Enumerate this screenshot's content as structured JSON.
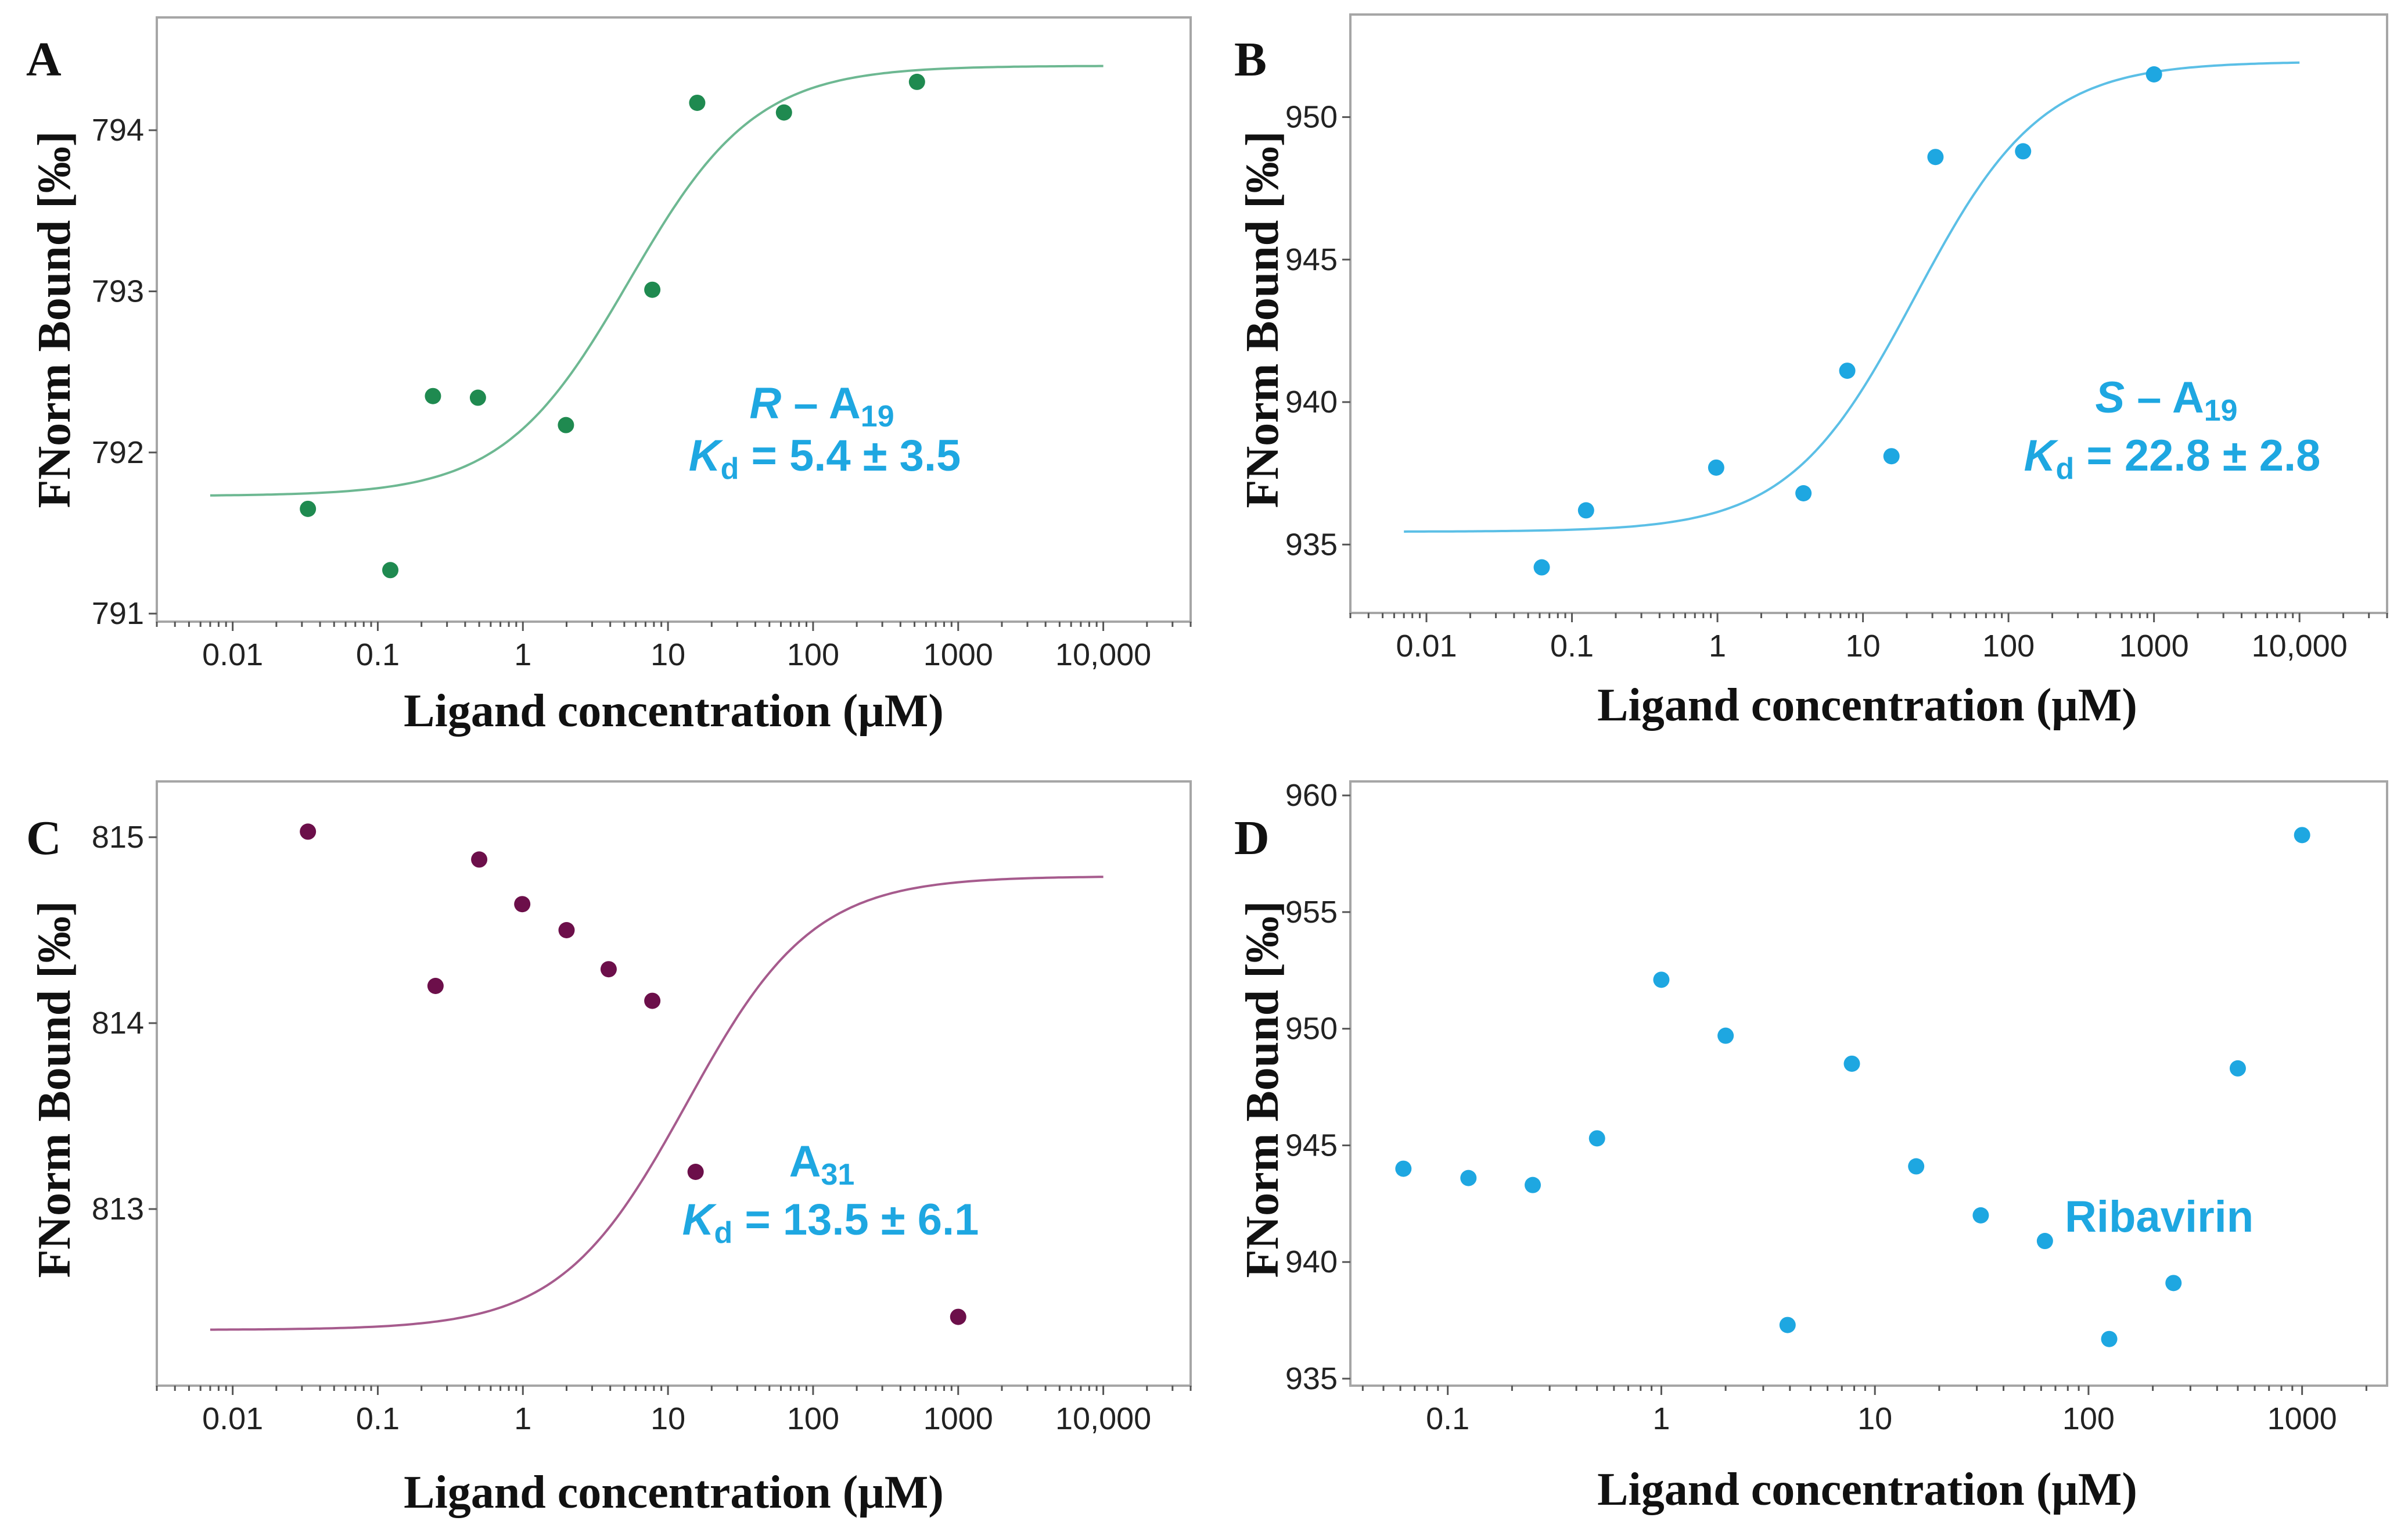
{
  "chart_data": [
    {
      "panel": "A",
      "type": "scatter",
      "xlabel": "Ligand concentration (μM)",
      "ylabel": "FNorm Bound [‰]",
      "x_scale": "log",
      "xlim": [
        0.003,
        40000
      ],
      "ylim": [
        790.95,
        794.7
      ],
      "x_ticks": [
        0.01,
        0.1,
        1,
        10,
        100,
        1000,
        10000
      ],
      "x_tick_labels": [
        "0.01",
        "0.1",
        "1",
        "10",
        "100",
        "1000",
        "10,000"
      ],
      "y_ticks": [
        791,
        792,
        793,
        794
      ],
      "y_tick_labels": [
        "791",
        "792",
        "793",
        "794"
      ],
      "grid": false,
      "point_color": "#1f8a50",
      "curve_color": "#6db892",
      "points": [
        {
          "x": 0.033,
          "y": 791.65
        },
        {
          "x": 0.122,
          "y": 791.27
        },
        {
          "x": 0.24,
          "y": 792.35
        },
        {
          "x": 0.49,
          "y": 792.34
        },
        {
          "x": 1.98,
          "y": 792.17
        },
        {
          "x": 7.8,
          "y": 793.01
        },
        {
          "x": 15.9,
          "y": 794.17
        },
        {
          "x": 63,
          "y": 794.11
        },
        {
          "x": 520,
          "y": 794.3
        }
      ],
      "fit": {
        "model": "hill",
        "x_start": 0.007,
        "x_end": 10000,
        "bottom": 791.73,
        "top": 794.4,
        "ec50": 5.4,
        "hill": 1
      },
      "annotation": {
        "line1_italic": "R",
        "line1_rest": " – A",
        "line1_sub": "19",
        "line2_italic": "K",
        "line2_sub": "d",
        "line2_rest": " = 5.4 ± 3.5"
      }
    },
    {
      "panel": "B",
      "type": "scatter",
      "xlabel": "Ligand concentration (μM)",
      "ylabel": "FNorm Bound [‰]",
      "x_scale": "log",
      "xlim": [
        0.003,
        40000
      ],
      "ylim": [
        932.6,
        953.6
      ],
      "x_ticks": [
        0.01,
        0.1,
        1,
        10,
        100,
        1000,
        10000
      ],
      "x_tick_labels": [
        "0.01",
        "0.1",
        "1",
        "10",
        "100",
        "1000",
        "10,000"
      ],
      "y_ticks": [
        935,
        940,
        945,
        950
      ],
      "y_tick_labels": [
        "935",
        "940",
        "945",
        "950"
      ],
      "grid": false,
      "point_color": "#1ea7e1",
      "curve_color": "#5bbfe6",
      "points": [
        {
          "x": 0.062,
          "y": 934.2
        },
        {
          "x": 0.125,
          "y": 936.2
        },
        {
          "x": 0.98,
          "y": 937.7
        },
        {
          "x": 3.9,
          "y": 936.8
        },
        {
          "x": 7.8,
          "y": 941.1
        },
        {
          "x": 15.7,
          "y": 938.1
        },
        {
          "x": 31.5,
          "y": 948.6
        },
        {
          "x": 126,
          "y": 948.8
        },
        {
          "x": 1000,
          "y": 951.5
        }
      ],
      "fit": {
        "model": "hill",
        "x_start": 0.007,
        "x_end": 10000,
        "bottom": 935.45,
        "top": 951.95,
        "ec50": 22.8,
        "hill": 1
      },
      "annotation": {
        "line1_italic": "S",
        "line1_rest": " – A",
        "line1_sub": "19",
        "line2_italic": "K",
        "line2_sub": "d",
        "line2_rest": " = 22.8 ± 2.8"
      }
    },
    {
      "panel": "C",
      "type": "scatter",
      "xlabel": "Ligand concentration (μM)",
      "ylabel": "FNorm Bound [‰]",
      "x_scale": "log",
      "xlim": [
        0.003,
        40000
      ],
      "ylim": [
        812.05,
        815.3
      ],
      "x_ticks": [
        0.01,
        0.1,
        1,
        10,
        100,
        1000,
        10000
      ],
      "x_tick_labels": [
        "0.01",
        "0.1",
        "1",
        "10",
        "100",
        "1000",
        "10,000"
      ],
      "y_ticks": [
        813,
        814,
        815
      ],
      "y_tick_labels": [
        "813",
        "814",
        "815"
      ],
      "grid": false,
      "point_color": "#6c0f4a",
      "curve_color": "#a65b8d",
      "points": [
        {
          "x": 0.033,
          "y": 815.03
        },
        {
          "x": 0.25,
          "y": 814.2
        },
        {
          "x": 0.5,
          "y": 814.88
        },
        {
          "x": 0.99,
          "y": 814.64
        },
        {
          "x": 2.0,
          "y": 814.5
        },
        {
          "x": 3.9,
          "y": 814.29
        },
        {
          "x": 7.8,
          "y": 814.12
        },
        {
          "x": 15.5,
          "y": 813.2
        },
        {
          "x": 1000,
          "y": 812.42
        }
      ],
      "fit": {
        "model": "hill",
        "x_start": 0.007,
        "x_end": 10000,
        "bottom": 812.35,
        "top": 814.79,
        "ec50": 13.5,
        "hill": 1
      },
      "annotation": {
        "line1_italic": "",
        "line1_rest": "A",
        "line1_sub": "31",
        "line2_italic": "K",
        "line2_sub": "d",
        "line2_rest": " = 13.5 ± 6.1"
      }
    },
    {
      "panel": "D",
      "type": "scatter",
      "xlabel": "Ligand concentration (μM)",
      "ylabel": "FNorm Bound [‰]",
      "x_scale": "log",
      "xlim": [
        0.035,
        2500
      ],
      "ylim": [
        934.7,
        960.6
      ],
      "x_ticks": [
        0.1,
        1,
        10,
        100,
        1000
      ],
      "x_tick_labels": [
        "0.1",
        "1",
        "10",
        "100",
        "1000"
      ],
      "y_ticks": [
        935,
        940,
        945,
        950,
        955,
        960
      ],
      "y_tick_labels": [
        "935",
        "940",
        "945",
        "950",
        "955",
        "960"
      ],
      "grid": false,
      "point_color": "#1ea7e1",
      "points": [
        {
          "x": 0.062,
          "y": 944.0
        },
        {
          "x": 0.125,
          "y": 943.6
        },
        {
          "x": 0.25,
          "y": 943.3
        },
        {
          "x": 0.5,
          "y": 945.3
        },
        {
          "x": 1.0,
          "y": 952.1
        },
        {
          "x": 2.0,
          "y": 949.7
        },
        {
          "x": 3.9,
          "y": 937.3
        },
        {
          "x": 7.8,
          "y": 948.5
        },
        {
          "x": 15.6,
          "y": 944.1
        },
        {
          "x": 31.3,
          "y": 942.0
        },
        {
          "x": 62.5,
          "y": 940.9
        },
        {
          "x": 125,
          "y": 936.7
        },
        {
          "x": 250,
          "y": 939.1
        },
        {
          "x": 500,
          "y": 948.3
        },
        {
          "x": 1000,
          "y": 958.3
        }
      ],
      "annotation": {
        "text": "Ribavirin"
      }
    }
  ]
}
